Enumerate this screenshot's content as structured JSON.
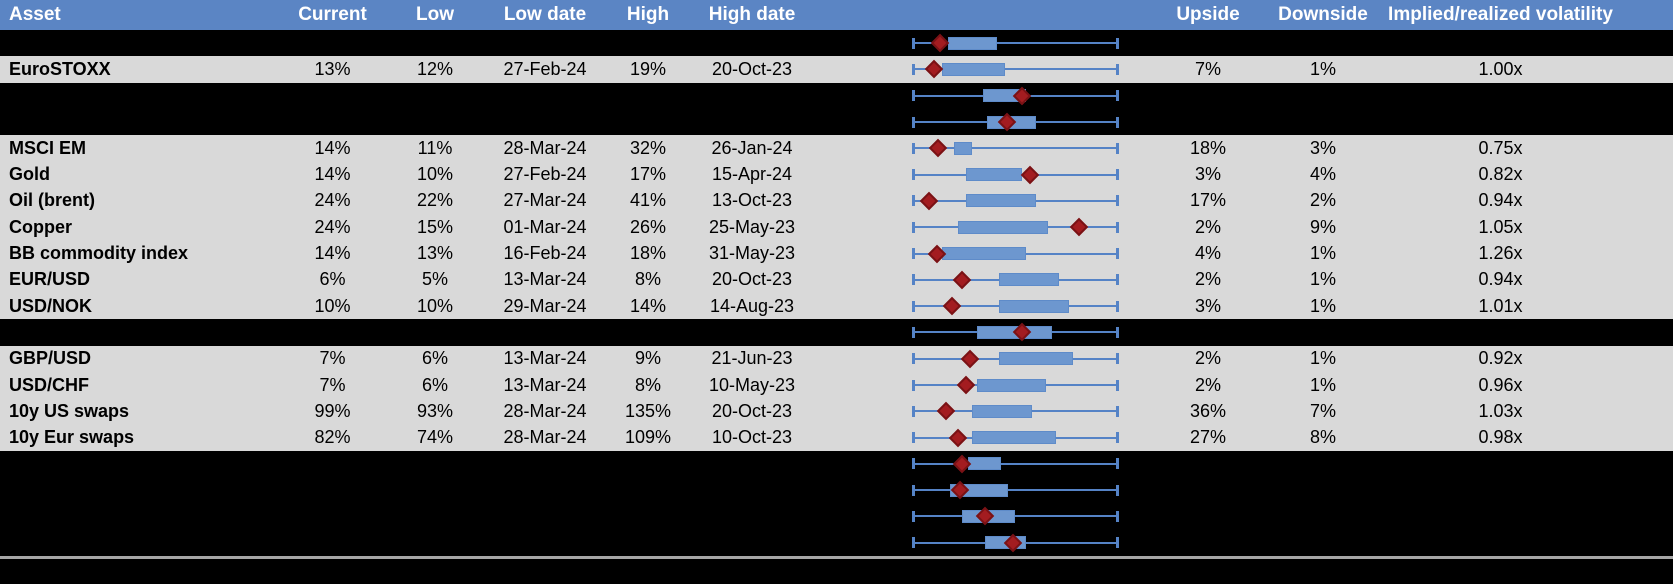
{
  "header": {
    "columns": {
      "asset": "Asset",
      "current": "Current",
      "low": "Low",
      "low_date": "Low date",
      "high": "High",
      "high_date": "High date",
      "upside": "Upside",
      "downside": "Downside",
      "implied": "Implied/realized volatility"
    }
  },
  "chart_data": {
    "type": "table",
    "columns": [
      "Asset",
      "Current",
      "Low",
      "Low date",
      "High",
      "High date",
      "Upside",
      "Downside",
      "Implied/realized volatility"
    ],
    "boxplot_note": "Each row shows a horizontal box plot: whiskers span the full low-to-high range (normalized 0-1), blue box = middle range, red diamond = current level. Hidden rows are blacked out but their box plots remain visible.",
    "rows": [
      {
        "type": "hidden",
        "boxplot": {
          "marker": 0.13,
          "box_lo": 0.17,
          "box_hi": 0.41
        }
      },
      {
        "type": "data",
        "asset": "EuroSTOXX",
        "current": "13%",
        "low": "12%",
        "low_date": "27-Feb-24",
        "high": "19%",
        "high_date": "20-Oct-23",
        "upside": "7%",
        "downside": "1%",
        "implied": "1.00x",
        "boxplot": {
          "marker": 0.1,
          "box_lo": 0.14,
          "box_hi": 0.45
        }
      },
      {
        "type": "hidden",
        "boxplot": {
          "marker": 0.53,
          "box_lo": 0.34,
          "box_hi": 0.55
        }
      },
      {
        "type": "hidden",
        "boxplot": {
          "marker": 0.46,
          "box_lo": 0.36,
          "box_hi": 0.6
        }
      },
      {
        "type": "data",
        "asset": "MSCI EM",
        "current": "14%",
        "low": "11%",
        "low_date": "28-Mar-24",
        "high": "32%",
        "high_date": "26-Jan-24",
        "upside": "18%",
        "downside": "3%",
        "implied": "0.75x",
        "boxplot": {
          "marker": 0.12,
          "box_lo": 0.2,
          "box_hi": 0.29
        }
      },
      {
        "type": "data",
        "asset": "Gold",
        "current": "14%",
        "low": "10%",
        "low_date": "27-Feb-24",
        "high": "17%",
        "high_date": "15-Apr-24",
        "upside": "3%",
        "downside": "4%",
        "implied": "0.82x",
        "boxplot": {
          "marker": 0.57,
          "box_lo": 0.26,
          "box_hi": 0.53
        }
      },
      {
        "type": "data",
        "asset": "Oil (brent)",
        "current": "24%",
        "low": "22%",
        "low_date": "27-Mar-24",
        "high": "41%",
        "high_date": "13-Oct-23",
        "upside": "17%",
        "downside": "2%",
        "implied": "0.94x",
        "boxplot": {
          "marker": 0.08,
          "box_lo": 0.26,
          "box_hi": 0.6
        }
      },
      {
        "type": "data",
        "asset": "Copper",
        "current": "24%",
        "low": "15%",
        "low_date": "01-Mar-24",
        "high": "26%",
        "high_date": "25-May-23",
        "upside": "2%",
        "downside": "9%",
        "implied": "1.05x",
        "boxplot": {
          "marker": 0.81,
          "box_lo": 0.22,
          "box_hi": 0.66
        }
      },
      {
        "type": "data",
        "asset": "BB commodity index",
        "current": "14%",
        "low": "13%",
        "low_date": "16-Feb-24",
        "high": "18%",
        "high_date": "31-May-23",
        "upside": "4%",
        "downside": "1%",
        "implied": "1.26x",
        "boxplot": {
          "marker": 0.115,
          "box_lo": 0.14,
          "box_hi": 0.55
        }
      },
      {
        "type": "data",
        "asset": "EUR/USD",
        "current": "6%",
        "low": "5%",
        "low_date": "13-Mar-24",
        "high": "8%",
        "high_date": "20-Oct-23",
        "upside": "2%",
        "downside": "1%",
        "implied": "0.94x",
        "boxplot": {
          "marker": 0.24,
          "box_lo": 0.42,
          "box_hi": 0.71
        }
      },
      {
        "type": "data",
        "asset": "USD/NOK",
        "current": "10%",
        "low": "10%",
        "low_date": "29-Mar-24",
        "high": "14%",
        "high_date": "14-Aug-23",
        "upside": "3%",
        "downside": "1%",
        "implied": "1.01x",
        "boxplot": {
          "marker": 0.19,
          "box_lo": 0.42,
          "box_hi": 0.76
        }
      },
      {
        "type": "hidden",
        "boxplot": {
          "marker": 0.53,
          "box_lo": 0.31,
          "box_hi": 0.68
        }
      },
      {
        "type": "data",
        "asset": "GBP/USD",
        "current": "7%",
        "low": "6%",
        "low_date": "13-Mar-24",
        "high": "9%",
        "high_date": "21-Jun-23",
        "upside": "2%",
        "downside": "1%",
        "implied": "0.92x",
        "boxplot": {
          "marker": 0.28,
          "box_lo": 0.42,
          "box_hi": 0.78
        }
      },
      {
        "type": "data",
        "asset": "USD/CHF",
        "current": "7%",
        "low": "6%",
        "low_date": "13-Mar-24",
        "high": "8%",
        "high_date": "10-May-23",
        "upside": "2%",
        "downside": "1%",
        "implied": "0.96x",
        "boxplot": {
          "marker": 0.26,
          "box_lo": 0.31,
          "box_hi": 0.65
        }
      },
      {
        "type": "data",
        "asset": "10y US swaps",
        "current": "99%",
        "low": "93%",
        "low_date": "28-Mar-24",
        "high": "135%",
        "high_date": "20-Oct-23",
        "upside": "36%",
        "downside": "7%",
        "implied": "1.03x",
        "boxplot": {
          "marker": 0.16,
          "box_lo": 0.29,
          "box_hi": 0.58
        }
      },
      {
        "type": "data",
        "asset": "10y Eur swaps",
        "current": "82%",
        "low": "74%",
        "low_date": "28-Mar-24",
        "high": "109%",
        "high_date": "10-Oct-23",
        "upside": "27%",
        "downside": "8%",
        "implied": "0.98x",
        "boxplot": {
          "marker": 0.22,
          "box_lo": 0.29,
          "box_hi": 0.7
        }
      },
      {
        "type": "hidden",
        "boxplot": {
          "marker": 0.24,
          "box_lo": 0.27,
          "box_hi": 0.43
        }
      },
      {
        "type": "hidden",
        "boxplot": {
          "marker": 0.23,
          "box_lo": 0.18,
          "box_hi": 0.465
        }
      },
      {
        "type": "hidden",
        "boxplot": {
          "marker": 0.35,
          "box_lo": 0.24,
          "box_hi": 0.5
        }
      },
      {
        "type": "hidden",
        "boxplot": {
          "marker": 0.49,
          "box_lo": 0.35,
          "box_hi": 0.55
        }
      }
    ]
  },
  "colors": {
    "header_bg": "#5B85C4",
    "header_text": "#FFFFFF",
    "row_gray": "#D9D9D9",
    "row_hidden": "#000000",
    "box_fill": "#6D97CF",
    "whisker_blue": "#5583C6",
    "marker_red": "#A31C20",
    "marker_border": "#7A1215",
    "bottom_separator": "#A6A6A6",
    "text": "#000000"
  }
}
